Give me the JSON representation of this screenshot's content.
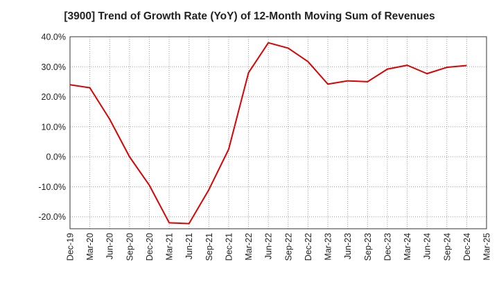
{
  "chart_data": {
    "type": "line",
    "title": "[3900]  Trend of Growth Rate (YoY) of 12-Month Moving Sum of Revenues",
    "xlabel": "",
    "ylabel": "",
    "ylim": [
      -24,
      40
    ],
    "y_ticks": [
      -20,
      -10,
      0,
      10,
      20,
      30,
      40
    ],
    "y_tick_labels": [
      "-20.0%",
      "-10.0%",
      "0.0%",
      "10.0%",
      "20.0%",
      "30.0%",
      "40.0%"
    ],
    "x_tick_labels": [
      "Dec-19",
      "Mar-20",
      "Jun-20",
      "Sep-20",
      "Dec-20",
      "Mar-21",
      "Jun-21",
      "Sep-21",
      "Dec-21",
      "Mar-22",
      "Jun-22",
      "Sep-22",
      "Dec-22",
      "Mar-23",
      "Jun-23",
      "Sep-23",
      "Dec-23",
      "Mar-24",
      "Jun-24",
      "Sep-24",
      "Dec-24",
      "Mar-25"
    ],
    "grid": true,
    "line_color": "#dd0000",
    "series": [
      {
        "x": [
          "Dec-19",
          "Mar-20",
          "Jun-20",
          "Sep-20",
          "Dec-20",
          "Mar-21",
          "Jun-21",
          "Sep-21",
          "Dec-21",
          "Mar-22",
          "Jun-22",
          "Sep-22",
          "Dec-22",
          "Mar-23",
          "Jun-23",
          "Sep-23",
          "Dec-23",
          "Mar-24",
          "Jun-24",
          "Sep-24",
          "Dec-24"
        ],
        "values": [
          24.0,
          23.0,
          12.5,
          0.0,
          -9.5,
          -22.0,
          -22.3,
          -11.0,
          2.5,
          28.0,
          38.0,
          36.2,
          31.7,
          24.2,
          25.3,
          25.0,
          29.2,
          30.5,
          27.7,
          29.8,
          30.4
        ]
      }
    ]
  }
}
